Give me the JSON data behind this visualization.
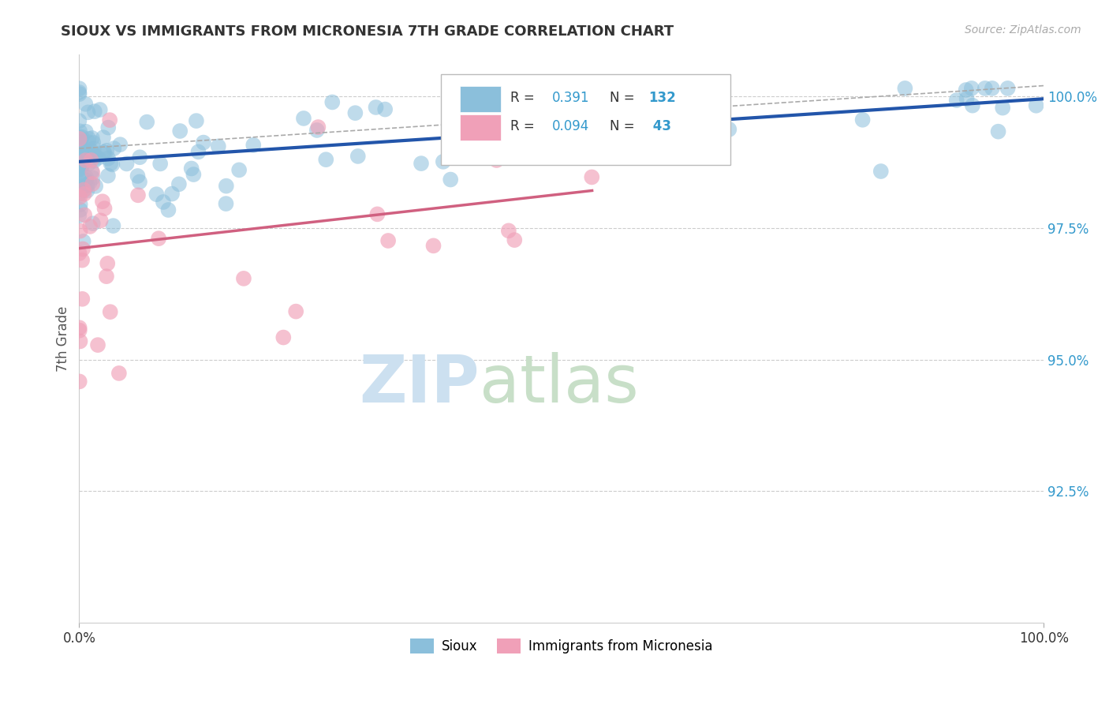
{
  "title": "SIOUX VS IMMIGRANTS FROM MICRONESIA 7TH GRADE CORRELATION CHART",
  "source": "Source: ZipAtlas.com",
  "ylabel": "7th Grade",
  "blue_color": "#8bbfdb",
  "pink_color": "#f0a0b8",
  "trend_blue_color": "#2255aa",
  "trend_pink_color": "#d06080",
  "trend_gray_color": "#bbbbbb",
  "background_color": "#ffffff",
  "legend_r_blue": "0.391",
  "legend_n_blue": "132",
  "legend_r_pink": "0.094",
  "legend_n_pink": " 43",
  "text_color_dark": "#333333",
  "text_color_blue": "#3399cc",
  "watermark_zip_color": "#cce0f0",
  "watermark_atlas_color": "#c8dfc8",
  "y_min": 90.0,
  "y_max": 100.8,
  "x_min": 0.0,
  "x_max": 100.0
}
